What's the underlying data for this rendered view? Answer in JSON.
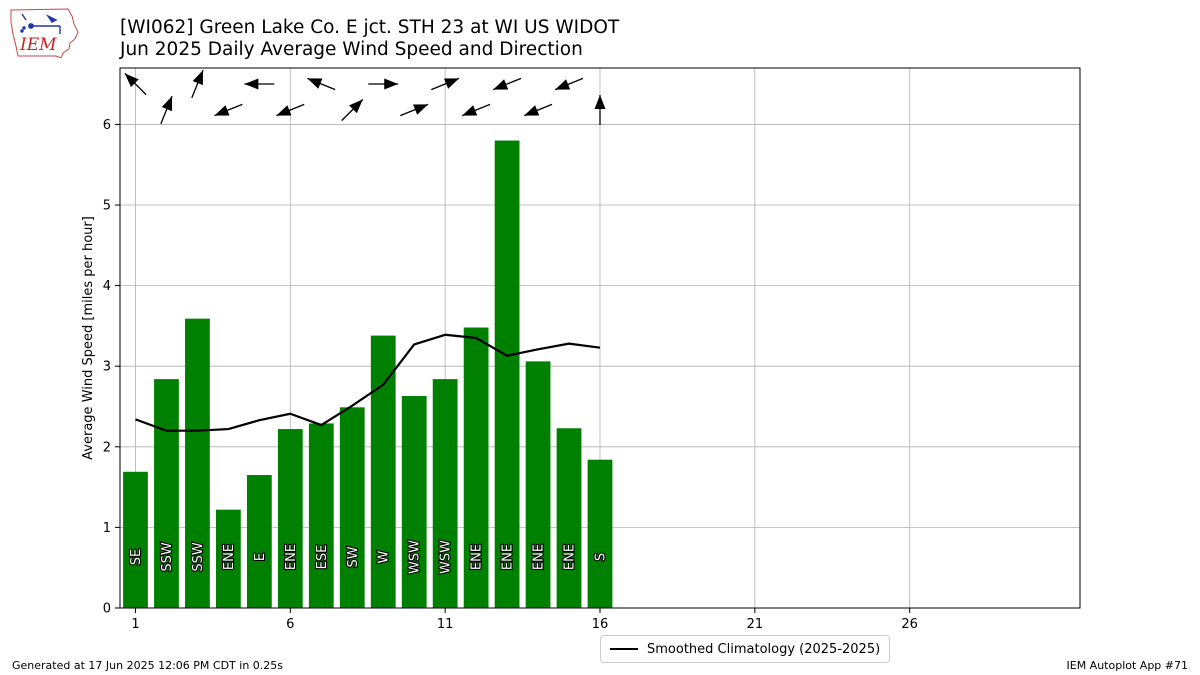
{
  "header": {
    "title_line1": "[WI062] Green Lake Co. E jct. STH 23 at  WI US WIDOT",
    "title_line2": "Jun 2025 Daily Average Wind Speed and Direction"
  },
  "logo": {
    "text": "IEM",
    "color": "#cc2222",
    "icon": "iowa-state-map-icon"
  },
  "footer": {
    "generated": "Generated at 17 Jun 2025 12:06 PM CDT in 0.25s",
    "app": "IEM Autoplot App #71"
  },
  "legend": {
    "label": "Smoothed Climatology (2025-2025)"
  },
  "colors": {
    "bar": "#008000",
    "line": "#000000",
    "grid": "#b0b0b0"
  },
  "chart_data": {
    "type": "bar",
    "xlabel": "",
    "ylabel": "Average Wind Speed [miles per hour]",
    "xlim": [
      0.5,
      31.5
    ],
    "ylim": [
      0,
      6.7
    ],
    "xticks": [
      1,
      6,
      11,
      16,
      21,
      26
    ],
    "yticks": [
      0,
      1,
      2,
      3,
      4,
      5,
      6
    ],
    "grid": true,
    "legend_position": "bottom-center",
    "days": [
      1,
      2,
      3,
      4,
      5,
      6,
      7,
      8,
      9,
      10,
      11,
      12,
      13,
      14,
      15,
      16
    ],
    "values": [
      1.69,
      2.84,
      3.59,
      1.22,
      1.65,
      2.22,
      2.29,
      2.49,
      3.38,
      2.63,
      2.84,
      3.48,
      5.8,
      3.06,
      2.23,
      1.84
    ],
    "directions": [
      "SE",
      "SSW",
      "SSW",
      "ENE",
      "E",
      "ENE",
      "ESE",
      "SW",
      "W",
      "WSW",
      "WSW",
      "ENE",
      "ENE",
      "ENE",
      "ENE",
      "S"
    ],
    "direction_degrees": [
      135,
      202,
      202,
      68,
      90,
      68,
      112,
      225,
      270,
      248,
      248,
      68,
      68,
      68,
      68,
      180
    ],
    "series": [
      {
        "name": "Smoothed Climatology (2025-2025)",
        "type": "line",
        "x": [
          1,
          2,
          3,
          4,
          5,
          6,
          7,
          8,
          9,
          10,
          11,
          12,
          13,
          14,
          15,
          16
        ],
        "values": [
          2.34,
          2.2,
          2.2,
          2.22,
          2.33,
          2.41,
          2.27,
          2.51,
          2.77,
          3.27,
          3.39,
          3.35,
          3.13,
          3.21,
          3.28,
          3.23
        ]
      }
    ]
  }
}
